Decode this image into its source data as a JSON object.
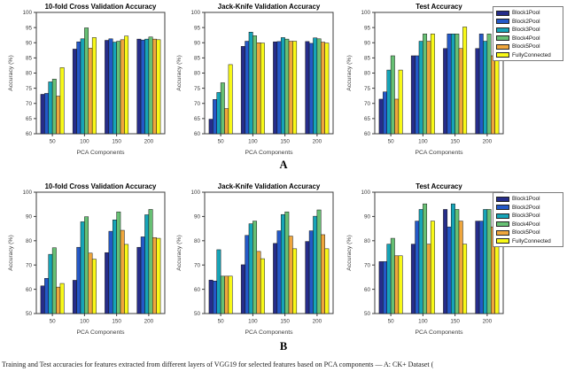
{
  "page": {
    "background": "#ffffff",
    "row_labels": [
      "A",
      "B"
    ],
    "caption": "Training and Test accuracies for features extracted from different layers of VGG19 for selected features based on PCA components — A: CK+ Dataset ("
  },
  "legend": {
    "position": "outside-top-right",
    "entries": [
      {
        "label": "Block1Pool",
        "color": "#262d8a"
      },
      {
        "label": "Block2Pool",
        "color": "#2459c8"
      },
      {
        "label": "Block3Pool",
        "color": "#16a4b8"
      },
      {
        "label": "Block4Pool",
        "color": "#67c074"
      },
      {
        "label": "Block5Pool",
        "color": "#efa63d"
      },
      {
        "label": "FullyConnected",
        "color": "#f8f918"
      }
    ]
  },
  "chart_data": [
    {
      "id": "a-10fold-cv",
      "row": "A",
      "type": "bar",
      "title": "10-fold Cross Validation Accuracy",
      "xlabel": "PCA Components",
      "ylabel": "Accuracy (%)",
      "ylim": [
        60,
        100
      ],
      "ytick_step": 5,
      "grid": false,
      "categories": [
        "50",
        "100",
        "150",
        "200"
      ],
      "series": [
        {
          "name": "Block1Pool",
          "values": [
            73.0,
            87.9,
            90.8,
            91.2
          ]
        },
        {
          "name": "Block2Pool",
          "values": [
            73.3,
            90.3,
            91.3,
            90.9
          ]
        },
        {
          "name": "Block3Pool",
          "values": [
            77.1,
            91.3,
            90.2,
            91.2
          ]
        },
        {
          "name": "Block4Pool",
          "values": [
            78.0,
            94.9,
            90.5,
            91.9
          ]
        },
        {
          "name": "Block5Pool",
          "values": [
            72.4,
            88.2,
            91.0,
            91.2
          ]
        },
        {
          "name": "FullyConnected",
          "values": [
            81.8,
            91.7,
            92.2,
            91.0
          ]
        }
      ]
    },
    {
      "id": "a-jackknife",
      "row": "A",
      "type": "bar",
      "title": "Jack-Knife Validation Accuracy",
      "xlabel": "PCA Components",
      "ylabel": "Accuracy (%)",
      "ylim": [
        60,
        100
      ],
      "ytick_step": 5,
      "grid": false,
      "categories": [
        "50",
        "100",
        "150",
        "200"
      ],
      "series": [
        {
          "name": "Block1Pool",
          "values": [
            64.8,
            88.8,
            90.3,
            90.4
          ]
        },
        {
          "name": "Block2Pool",
          "values": [
            71.3,
            90.5,
            90.4,
            89.8
          ]
        },
        {
          "name": "Block3Pool",
          "values": [
            73.6,
            93.5,
            91.7,
            91.6
          ]
        },
        {
          "name": "Block4Pool",
          "values": [
            76.8,
            92.3,
            91.2,
            91.3
          ]
        },
        {
          "name": "Block5Pool",
          "values": [
            68.3,
            90.0,
            90.5,
            90.2
          ]
        },
        {
          "name": "FullyConnected",
          "values": [
            82.8,
            89.9,
            90.5,
            89.9
          ]
        }
      ]
    },
    {
      "id": "a-test",
      "row": "A",
      "type": "bar",
      "title": "Test Accuracy",
      "xlabel": "PCA Components",
      "ylabel": "Accuracy (%)",
      "ylim": [
        60,
        100
      ],
      "ytick_step": 5,
      "grid": false,
      "categories": [
        "50",
        "100",
        "150",
        "200"
      ],
      "series": [
        {
          "name": "Block1Pool",
          "values": [
            71.4,
            85.7,
            88.1,
            88.1
          ]
        },
        {
          "name": "Block2Pool",
          "values": [
            73.8,
            85.7,
            92.9,
            92.9
          ]
        },
        {
          "name": "Block3Pool",
          "values": [
            81.0,
            90.5,
            92.9,
            90.5
          ]
        },
        {
          "name": "Block4Pool",
          "values": [
            85.7,
            92.9,
            92.9,
            92.9
          ]
        },
        {
          "name": "Block5Pool",
          "values": [
            71.4,
            90.5,
            88.1,
            85.7
          ]
        },
        {
          "name": "FullyConnected",
          "values": [
            81.0,
            92.9,
            95.2,
            92.9
          ]
        }
      ]
    },
    {
      "id": "b-10fold-cv",
      "row": "B",
      "type": "bar",
      "title": "10-fold Cross Validation Accuracy",
      "xlabel": "PCA Components",
      "ylabel": "Accuracy (%)",
      "ylim": [
        50,
        100
      ],
      "ytick_step": 10,
      "grid": false,
      "categories": [
        "50",
        "100",
        "150",
        "200"
      ],
      "series": [
        {
          "name": "Block1Pool",
          "values": [
            61.4,
            63.7,
            75.1,
            77.3
          ]
        },
        {
          "name": "Block2Pool",
          "values": [
            64.5,
            77.3,
            83.9,
            81.6
          ]
        },
        {
          "name": "Block3Pool",
          "values": [
            74.4,
            87.8,
            88.6,
            90.7
          ]
        },
        {
          "name": "Block4Pool",
          "values": [
            77.1,
            89.9,
            91.9,
            92.9
          ]
        },
        {
          "name": "Block5Pool",
          "values": [
            60.9,
            74.9,
            84.3,
            81.3
          ]
        },
        {
          "name": "FullyConnected",
          "values": [
            62.4,
            72.4,
            78.5,
            81.0
          ]
        }
      ]
    },
    {
      "id": "b-jackknife",
      "row": "B",
      "type": "bar",
      "title": "Jack-Knife Validation Accuracy",
      "xlabel": "PCA Components",
      "ylabel": "Accuracy (%)",
      "ylim": [
        50,
        100
      ],
      "ytick_step": 10,
      "grid": false,
      "categories": [
        "50",
        "100",
        "150",
        "200"
      ],
      "series": [
        {
          "name": "Block1Pool",
          "values": [
            63.8,
            70.1,
            78.9,
            79.7
          ]
        },
        {
          "name": "Block2Pool",
          "values": [
            63.4,
            82.2,
            84.1,
            84.1
          ]
        },
        {
          "name": "Block3Pool",
          "values": [
            76.3,
            87.0,
            90.8,
            90.1
          ]
        },
        {
          "name": "Block4Pool",
          "values": [
            65.4,
            88.1,
            91.9,
            92.7
          ]
        },
        {
          "name": "Block5Pool",
          "values": [
            65.4,
            75.6,
            81.9,
            82.5
          ]
        },
        {
          "name": "FullyConnected",
          "values": [
            65.4,
            72.6,
            76.7,
            76.7
          ]
        }
      ]
    },
    {
      "id": "b-test",
      "row": "B",
      "type": "bar",
      "title": "Test Accuracy",
      "xlabel": "PCA Components",
      "ylabel": "Accuracy (%)",
      "ylim": [
        50,
        100
      ],
      "ytick_step": 10,
      "grid": false,
      "categories": [
        "50",
        "100",
        "150",
        "200"
      ],
      "series": [
        {
          "name": "Block1Pool",
          "values": [
            71.4,
            78.6,
            92.9,
            88.1
          ]
        },
        {
          "name": "Block2Pool",
          "values": [
            71.4,
            88.1,
            85.7,
            88.1
          ]
        },
        {
          "name": "Block3Pool",
          "values": [
            78.6,
            92.9,
            95.2,
            92.9
          ]
        },
        {
          "name": "Block4Pool",
          "values": [
            81.0,
            95.2,
            92.9,
            92.9
          ]
        },
        {
          "name": "Block5Pool",
          "values": [
            73.8,
            78.6,
            88.1,
            85.7
          ]
        },
        {
          "name": "FullyConnected",
          "values": [
            73.8,
            88.1,
            78.6,
            88.1
          ]
        }
      ]
    }
  ]
}
